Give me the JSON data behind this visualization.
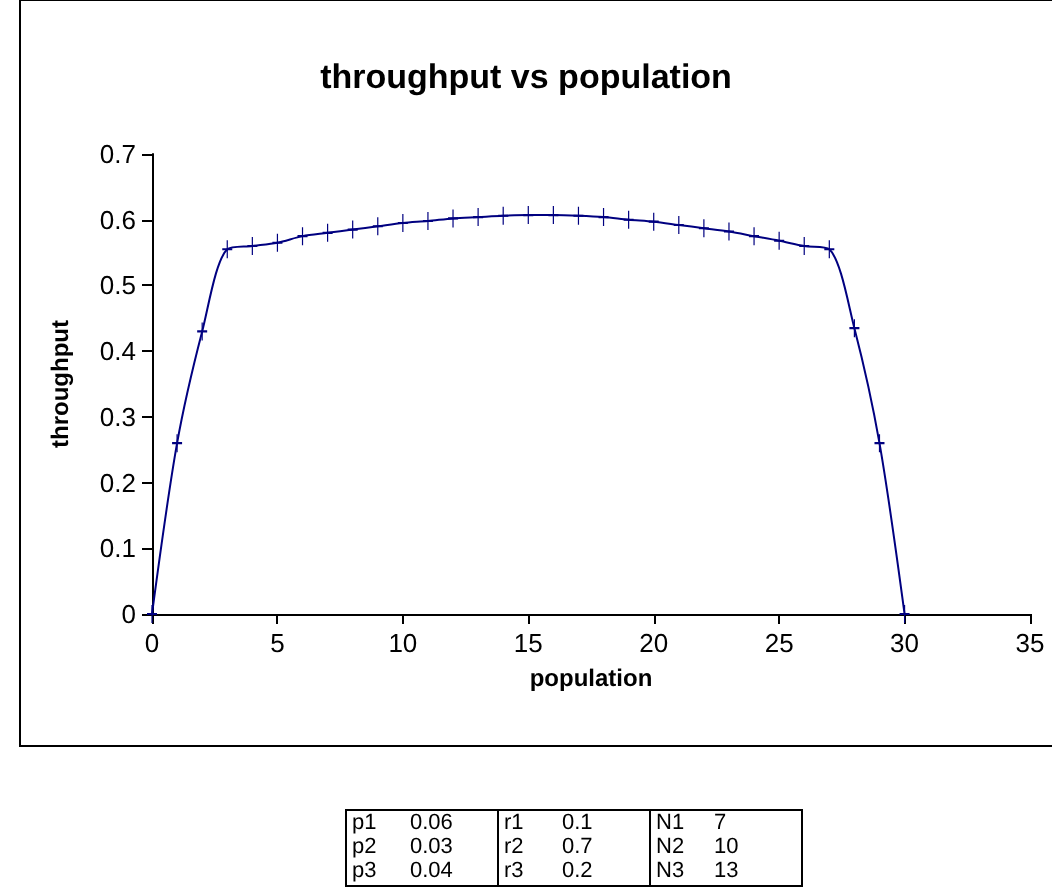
{
  "chart_data": {
    "type": "line",
    "title": "throughput vs population",
    "xlabel": "population",
    "ylabel": "throughput",
    "x": [
      0,
      1,
      2,
      3,
      4,
      5,
      6,
      7,
      8,
      9,
      10,
      11,
      12,
      13,
      14,
      15,
      16,
      17,
      18,
      19,
      20,
      21,
      22,
      23,
      24,
      25,
      26,
      27,
      28,
      29,
      30
    ],
    "series": [
      {
        "color": "#000080",
        "values": [
          0,
          0.26,
          0.43,
          0.555,
          0.56,
          0.565,
          0.575,
          0.58,
          0.585,
          0.59,
          0.595,
          0.598,
          0.602,
          0.604,
          0.606,
          0.607,
          0.607,
          0.606,
          0.604,
          0.6,
          0.597,
          0.592,
          0.587,
          0.582,
          0.575,
          0.568,
          0.56,
          0.555,
          0.435,
          0.26,
          0
        ]
      }
    ],
    "xlim": [
      0,
      35
    ],
    "xticks": [
      0,
      5,
      10,
      15,
      20,
      25,
      30,
      35
    ],
    "ylim": [
      0,
      0.7
    ],
    "yticks": [
      0,
      0.1,
      0.2,
      0.3,
      0.4,
      0.5,
      0.6,
      0.7
    ],
    "grid": false,
    "marker": "cross",
    "line_style": "solid",
    "annotations": [
      "p1 0.06",
      "p2 0.03",
      "p3 0.04",
      "r1 0.1",
      "r2 0.7",
      "r3 0.2",
      "N1 7",
      "N2 10",
      "N3 13"
    ]
  }
}
